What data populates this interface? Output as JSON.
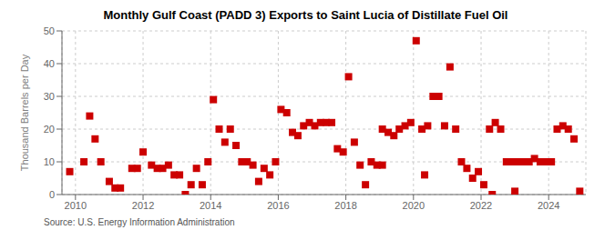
{
  "chart_data": {
    "type": "scatter",
    "title": "Monthly Gulf Coast (PADD 3) Exports to Saint Lucia of Distillate Fuel Oil",
    "ylabel": "Thousand Barrels per Day",
    "annotations": [
      "Source: U.S. Energy Information Administration"
    ],
    "color": "#cc0000",
    "marker": "square",
    "grid": true,
    "xlim": [
      2009.6,
      2025.1
    ],
    "xticks": [
      2010,
      2012,
      2014,
      2016,
      2018,
      2020,
      2022,
      2024
    ],
    "ylim": [
      0,
      50
    ],
    "yticks": [
      0,
      10,
      20,
      30,
      40,
      50
    ],
    "x": [
      2009.83,
      2010.25,
      2010.42,
      2010.58,
      2010.75,
      2011.0,
      2011.17,
      2011.33,
      2011.67,
      2011.83,
      2012.0,
      2012.25,
      2012.42,
      2012.58,
      2012.75,
      2012.92,
      2013.08,
      2013.25,
      2013.42,
      2013.58,
      2013.75,
      2013.92,
      2014.08,
      2014.25,
      2014.42,
      2014.58,
      2014.75,
      2014.92,
      2015.08,
      2015.25,
      2015.42,
      2015.58,
      2015.75,
      2015.92,
      2016.08,
      2016.25,
      2016.42,
      2016.58,
      2016.75,
      2016.92,
      2017.08,
      2017.25,
      2017.42,
      2017.58,
      2017.75,
      2017.92,
      2018.08,
      2018.25,
      2018.42,
      2018.58,
      2018.75,
      2018.92,
      2019.08,
      2019.25,
      2019.42,
      2019.58,
      2019.75,
      2019.92,
      2020.08,
      2020.25,
      2020.42,
      2020.58,
      2020.75,
      2020.92,
      2021.08,
      2021.25,
      2021.42,
      2021.58,
      2021.75,
      2021.92,
      2022.08,
      2022.25,
      2022.42,
      2022.58,
      2022.75,
      2022.92,
      2023.08,
      2023.25,
      2023.42,
      2023.58,
      2023.75,
      2023.92,
      2024.08,
      2024.25,
      2024.42,
      2024.58,
      2024.75,
      2024.92,
      2019.08,
      2020.33,
      2022.33,
      2023.0
    ],
    "values": [
      7,
      10,
      24,
      17,
      10,
      4,
      2,
      2,
      8,
      8,
      13,
      9,
      8,
      8,
      9,
      6,
      6,
      0,
      3,
      8,
      3,
      10,
      29,
      20,
      16,
      20,
      15,
      10,
      10,
      9,
      4,
      8,
      6,
      10,
      26,
      25,
      19,
      18,
      21,
      22,
      21,
      22,
      22,
      22,
      14,
      13,
      36,
      16,
      9,
      3,
      10,
      9,
      20,
      19,
      18,
      20,
      21,
      22,
      47,
      20,
      21,
      30,
      30,
      21,
      39,
      20,
      10,
      8,
      5,
      7,
      3,
      20,
      22,
      20,
      10,
      10,
      10,
      10,
      10,
      11,
      10,
      10,
      10,
      20,
      21,
      20,
      17,
      1,
      9,
      6,
      0,
      1
    ]
  }
}
